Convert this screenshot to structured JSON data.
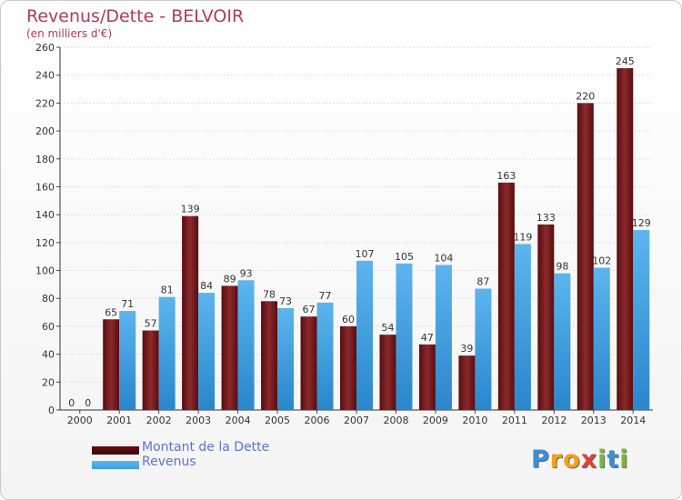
{
  "header": {
    "title": "Revenus/Dette - BELVOIR",
    "subtitle": "(en milliers d'€)"
  },
  "chart_data": {
    "type": "bar",
    "title": "Revenus/Dette - BELVOIR",
    "subtitle": "(en milliers d'€)",
    "xlabel": "",
    "ylabel": "",
    "ylim": [
      0,
      260
    ],
    "yticks": [
      0,
      20,
      40,
      60,
      80,
      100,
      120,
      140,
      160,
      180,
      200,
      220,
      240,
      260
    ],
    "grid": true,
    "legend_position": "bottom-left",
    "categories": [
      "2000",
      "2001",
      "2002",
      "2003",
      "2004",
      "2005",
      "2006",
      "2007",
      "2008",
      "2009",
      "2010",
      "2011",
      "2012",
      "2013",
      "2014"
    ],
    "series": [
      {
        "name": "Montant de la Dette",
        "color": "#7a1e20",
        "values": [
          0,
          65,
          57,
          139,
          89,
          78,
          67,
          60,
          54,
          47,
          39,
          163,
          133,
          220,
          245
        ]
      },
      {
        "name": "Revenus",
        "color": "#3d9ee0",
        "values": [
          0,
          71,
          81,
          84,
          93,
          73,
          77,
          107,
          105,
          104,
          87,
          119,
          98,
          102,
          129
        ]
      }
    ]
  },
  "legend": {
    "items": [
      {
        "label": "Montant de la Dette",
        "color": "#6a0e10"
      },
      {
        "label": "Revenus",
        "color": "#3d9ee0"
      }
    ]
  },
  "logo": {
    "text": "Proxiti",
    "letters": [
      "P",
      "r",
      "o",
      "x",
      "i",
      "t",
      "i"
    ],
    "colors": [
      "#3d8fd6",
      "#f2a31b",
      "#f2a31b",
      "#e0403a",
      "#78b83a",
      "#3d8fd6",
      "#78b83a"
    ]
  }
}
